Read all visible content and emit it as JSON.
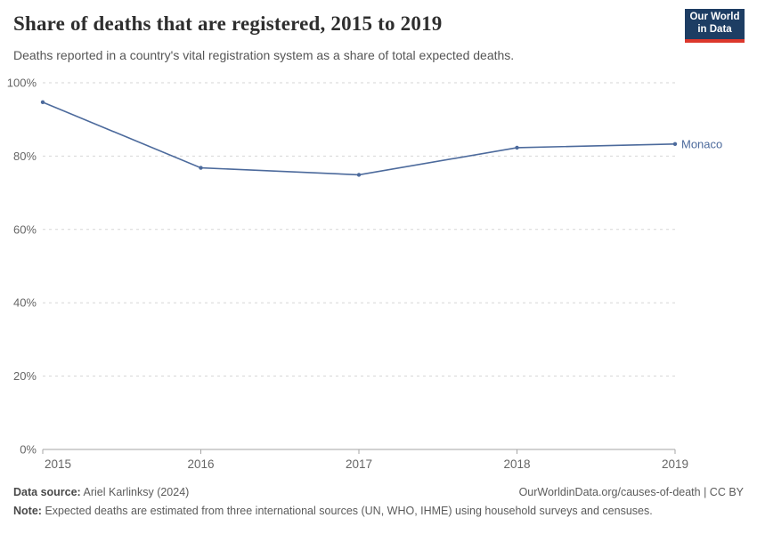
{
  "header": {
    "title": "Share of deaths that are registered, 2015 to 2019",
    "subtitle": "Deaths reported in a country's vital registration system as a share of total expected deaths.",
    "logo_line1": "Our World",
    "logo_line2": "in Data"
  },
  "chart_data": {
    "type": "line",
    "title": "Share of deaths that are registered, 2015 to 2019",
    "x": [
      2015,
      2016,
      2017,
      2018,
      2019
    ],
    "series": [
      {
        "name": "Monaco",
        "values": [
          94.7,
          76.8,
          74.9,
          82.3,
          83.3
        ],
        "color": "#4C6A9C"
      }
    ],
    "xlabel": "",
    "ylabel": "",
    "ylim": [
      0,
      100
    ],
    "yticks": [
      0,
      20,
      40,
      60,
      80,
      100
    ],
    "ytick_suffix": "%",
    "grid": "horizontal-dashed",
    "legend_position": "line-end-label"
  },
  "footer": {
    "data_source_label": "Data source:",
    "data_source": "Ariel Karlinksy (2024)",
    "link": "OurWorldinData.org/causes-of-death | CC BY",
    "note_label": "Note:",
    "note": "Expected deaths are estimated from three international sources (UN, WHO, IHME) using household surveys and censuses."
  },
  "colors": {
    "line": "#4C6A9C",
    "grid": "#d6d6d6",
    "axis": "#a5a5a5",
    "tick_label": "#666666",
    "logo_bg": "#1d3d63",
    "logo_accent": "#dc372c"
  }
}
